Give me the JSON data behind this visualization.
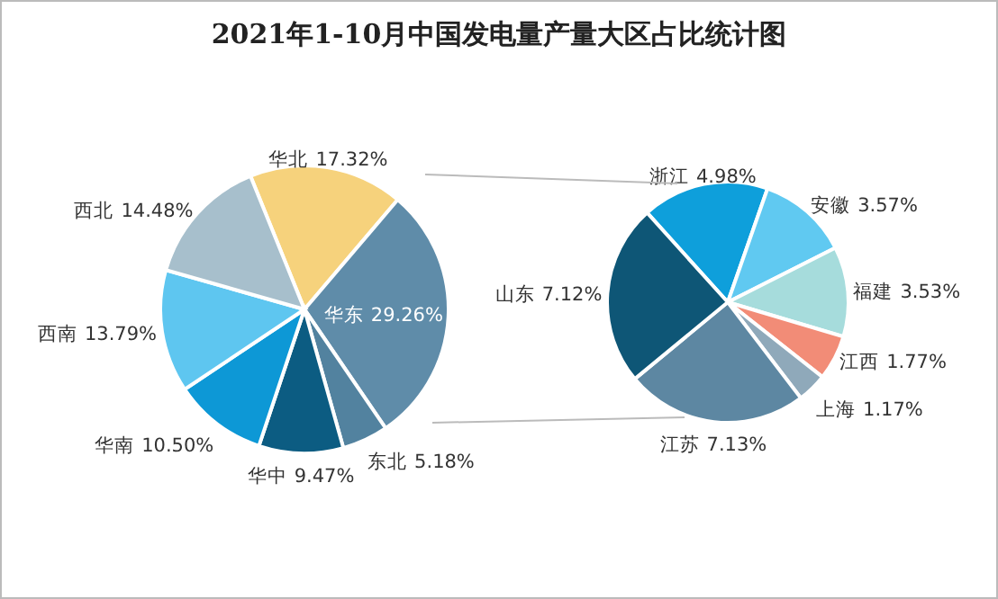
{
  "chart_data": [
    {
      "type": "pie",
      "title": "2021年1-10月中国发电量产量大区占比统计图",
      "categories": [
        "华北",
        "华东",
        "东北",
        "华中",
        "华南",
        "西南",
        "西北"
      ],
      "values": [
        17.32,
        29.26,
        5.18,
        9.47,
        10.5,
        13.79,
        14.48
      ],
      "colors": [
        "#f6d27c",
        "#5f8ca9",
        "#52829f",
        "#0c5c82",
        "#0d98d6",
        "#5ec6f0",
        "#a7bfcc"
      ],
      "value_labels": [
        "17.32%",
        "29.26%",
        "5.18%",
        "9.47%",
        "10.50%",
        "13.79%",
        "14.48%"
      ]
    },
    {
      "type": "pie",
      "categories": [
        "浙江",
        "安徽",
        "福建",
        "江西",
        "上海",
        "江苏",
        "山东"
      ],
      "values": [
        4.98,
        3.57,
        3.53,
        1.77,
        1.17,
        7.13,
        7.12
      ],
      "colors": [
        "#0e9fdb",
        "#60c9f1",
        "#a6dcdc",
        "#f28c77",
        "#8fa9ba",
        "#5d87a2",
        "#0e5676"
      ],
      "value_labels": [
        "4.98%",
        "3.57%",
        "3.53%",
        "1.77%",
        "1.17%",
        "7.13%",
        "7.12%"
      ]
    }
  ]
}
